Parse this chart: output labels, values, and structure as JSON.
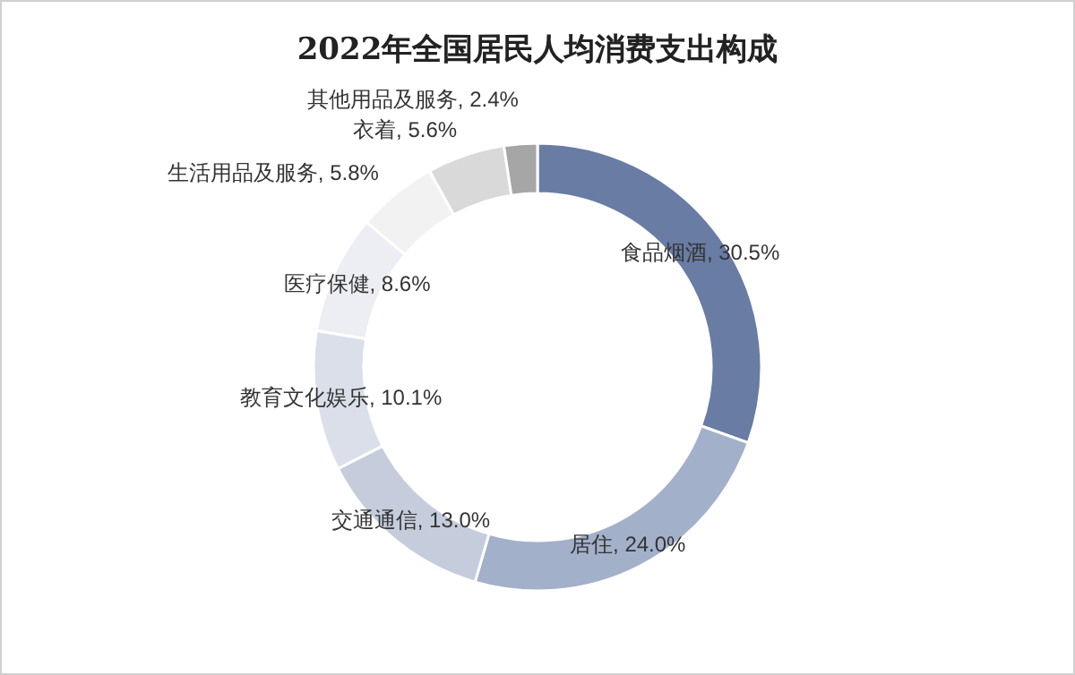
{
  "chart_data": {
    "type": "donut",
    "title": "2022年全国居民人均消费支出构成",
    "categories": [
      "食品烟酒",
      "居住",
      "交通通信",
      "教育文化娱乐",
      "医疗保健",
      "生活用品及服务",
      "衣着",
      "其他用品及服务"
    ],
    "values": [
      30.5,
      24.0,
      13.0,
      10.1,
      8.6,
      5.8,
      5.6,
      2.4
    ],
    "value_labels": [
      "30.5%",
      "24.0%",
      "13.0%",
      "10.1%",
      "8.6%",
      "5.8%",
      "5.6%",
      "2.4%"
    ],
    "colors": [
      "#687ca4",
      "#a3b0ca",
      "#c5ccdc",
      "#dadfe9",
      "#eceef3",
      "#f2f2f2",
      "#d9d9d9",
      "#a6a6a6"
    ]
  }
}
